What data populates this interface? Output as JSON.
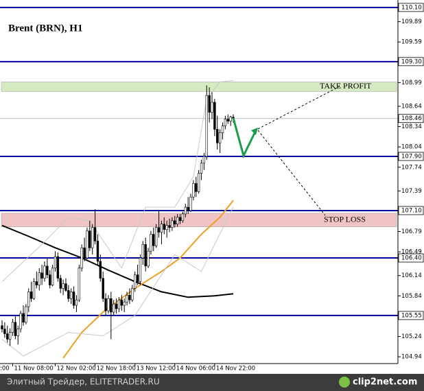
{
  "chart_data": {
    "type": "candlestick",
    "title": "Brent (BRN), H1",
    "categories": [
      null,
      null,
      null,
      null,
      "11 Nov 08:00",
      null,
      null,
      null,
      null,
      null,
      null,
      null,
      null,
      null,
      null,
      null,
      null,
      null,
      null,
      null,
      "12 Nov 02:00",
      null,
      null,
      null,
      null,
      null,
      null,
      null,
      null,
      null,
      null,
      null,
      null,
      null,
      null,
      "12 Nov 18:00",
      null,
      null,
      null,
      null,
      null,
      null,
      null,
      null,
      null,
      null,
      null,
      null,
      null,
      null,
      "13 Nov 12:00",
      null,
      null,
      null,
      null,
      null,
      null,
      null,
      null,
      null,
      null,
      null,
      null,
      null,
      null,
      "14 Nov 06:00",
      null,
      null,
      null,
      null,
      null,
      null,
      null,
      null,
      null,
      null,
      null,
      null,
      null,
      null,
      "14 Nov 22:00",
      null,
      null,
      null,
      null,
      null,
      null,
      null
    ],
    "x_axis_cut_label": ":00",
    "ohlc": [
      [
        105.4,
        105.48,
        105.3,
        105.35
      ],
      [
        105.35,
        105.45,
        105.22,
        105.28
      ],
      [
        105.28,
        105.4,
        105.15,
        105.2
      ],
      [
        105.2,
        105.36,
        105.1,
        105.3
      ],
      [
        105.3,
        105.5,
        105.25,
        105.45
      ],
      [
        105.45,
        105.55,
        105.2,
        105.25
      ],
      [
        105.25,
        105.4,
        105.12,
        105.35
      ],
      [
        105.35,
        105.62,
        105.3,
        105.58
      ],
      [
        105.58,
        105.7,
        105.4,
        105.45
      ],
      [
        105.45,
        105.72,
        105.42,
        105.68
      ],
      [
        105.68,
        105.95,
        105.6,
        105.9
      ],
      [
        105.9,
        106.05,
        105.75,
        105.8
      ],
      [
        105.8,
        106.1,
        105.78,
        106.05
      ],
      [
        106.05,
        106.2,
        105.95,
        106.0
      ],
      [
        106.0,
        106.25,
        105.92,
        106.18
      ],
      [
        106.18,
        106.3,
        106.0,
        106.1
      ],
      [
        106.1,
        106.35,
        106.05,
        106.28
      ],
      [
        106.28,
        106.4,
        106.1,
        106.15
      ],
      [
        106.15,
        106.22,
        105.95,
        106.0
      ],
      [
        106.0,
        106.3,
        105.98,
        106.25
      ],
      [
        106.25,
        106.5,
        106.2,
        106.42
      ],
      [
        106.42,
        106.48,
        106.05,
        106.1
      ],
      [
        106.1,
        106.15,
        105.88,
        105.95
      ],
      [
        105.95,
        106.08,
        105.85,
        106.02
      ],
      [
        106.02,
        106.1,
        105.9,
        105.92
      ],
      [
        105.92,
        106.0,
        105.75,
        105.8
      ],
      [
        105.8,
        105.95,
        105.72,
        105.9
      ],
      [
        105.9,
        105.98,
        105.65,
        105.7
      ],
      [
        105.7,
        105.85,
        105.6,
        105.78
      ],
      [
        105.78,
        106.3,
        105.75,
        106.25
      ],
      [
        106.25,
        106.6,
        106.2,
        106.55
      ],
      [
        106.55,
        106.7,
        106.35,
        106.4
      ],
      [
        106.4,
        106.85,
        106.38,
        106.8
      ],
      [
        106.8,
        106.95,
        106.5,
        106.55
      ],
      [
        106.55,
        106.9,
        106.45,
        106.85
      ],
      [
        106.85,
        107.12,
        106.6,
        106.65
      ],
      [
        106.65,
        106.75,
        106.3,
        106.35
      ],
      [
        106.35,
        106.45,
        106.05,
        106.1
      ],
      [
        106.1,
        106.2,
        105.75,
        105.8
      ],
      [
        105.8,
        105.88,
        105.55,
        105.62
      ],
      [
        105.62,
        105.85,
        105.58,
        105.8
      ],
      [
        105.8,
        105.9,
        105.2,
        105.6
      ],
      [
        105.6,
        105.78,
        105.55,
        105.72
      ],
      [
        105.72,
        105.8,
        105.58,
        105.65
      ],
      [
        105.65,
        105.82,
        105.6,
        105.78
      ],
      [
        105.78,
        105.85,
        105.62,
        105.7
      ],
      [
        105.7,
        105.8,
        105.6,
        105.75
      ],
      [
        105.75,
        105.9,
        105.7,
        105.85
      ],
      [
        105.85,
        105.95,
        105.72,
        105.78
      ],
      [
        105.78,
        106.0,
        105.75,
        105.95
      ],
      [
        105.95,
        106.2,
        105.9,
        106.15
      ],
      [
        106.15,
        106.3,
        106.0,
        106.05
      ],
      [
        106.05,
        106.45,
        106.0,
        106.4
      ],
      [
        106.4,
        106.65,
        106.3,
        106.6
      ],
      [
        106.6,
        106.7,
        106.2,
        106.28
      ],
      [
        106.28,
        106.55,
        106.25,
        106.5
      ],
      [
        106.5,
        106.8,
        106.45,
        106.75
      ],
      [
        106.75,
        106.85,
        106.5,
        106.58
      ],
      [
        106.58,
        106.9,
        106.55,
        106.85
      ],
      [
        106.85,
        107.1,
        106.7,
        106.78
      ],
      [
        106.78,
        106.95,
        106.6,
        106.9
      ],
      [
        106.9,
        107.0,
        106.75,
        106.82
      ],
      [
        106.82,
        106.95,
        106.7,
        106.88
      ],
      [
        106.88,
        106.98,
        106.78,
        106.85
      ],
      [
        106.85,
        107.0,
        106.8,
        106.95
      ],
      [
        106.95,
        107.02,
        106.85,
        106.9
      ],
      [
        106.9,
        107.05,
        106.86,
        107.0
      ],
      [
        107.0,
        107.05,
        106.9,
        106.95
      ],
      [
        106.95,
        107.08,
        106.92,
        107.05
      ],
      [
        107.05,
        107.2,
        107.0,
        107.15
      ],
      [
        107.15,
        107.3,
        107.05,
        107.1
      ],
      [
        107.1,
        107.35,
        107.08,
        107.3
      ],
      [
        107.3,
        107.55,
        107.25,
        107.5
      ],
      [
        107.5,
        107.6,
        107.3,
        107.38
      ],
      [
        107.38,
        107.7,
        107.35,
        107.65
      ],
      [
        107.65,
        107.85,
        107.55,
        107.8
      ],
      [
        107.8,
        107.95,
        107.7,
        107.9
      ],
      [
        107.9,
        108.95,
        107.85,
        108.8
      ],
      [
        108.8,
        108.92,
        108.4,
        108.55
      ],
      [
        108.55,
        108.85,
        108.45,
        108.7
      ],
      [
        108.7,
        108.75,
        108.2,
        108.3
      ],
      [
        108.3,
        108.5,
        108.0,
        108.1
      ],
      [
        108.1,
        108.3,
        107.95,
        108.25
      ],
      [
        108.25,
        108.4,
        108.15,
        108.35
      ],
      [
        108.35,
        108.5,
        108.3,
        108.45
      ],
      [
        108.45,
        108.52,
        108.38,
        108.42
      ],
      [
        108.42,
        108.5,
        108.35,
        108.48
      ],
      [
        108.48,
        108.52,
        108.4,
        108.46
      ]
    ],
    "lines": [
      {
        "color": "#000000",
        "width": 2,
        "x": [
          0,
          10,
          20,
          30,
          40,
          50,
          60,
          70,
          80,
          87
        ],
        "values": [
          106.88,
          106.72,
          106.55,
          106.4,
          106.22,
          106.05,
          105.9,
          105.82,
          105.84,
          105.87
        ]
      },
      {
        "color": "#f0a020",
        "width": 2,
        "x": [
          23,
          30,
          38,
          50,
          60,
          67,
          75,
          82,
          87
        ],
        "values": [
          104.92,
          105.3,
          105.6,
          105.95,
          106.2,
          106.4,
          106.75,
          107.0,
          107.25
        ]
      },
      {
        "color": "#c8c8c8",
        "width": 1,
        "x": [
          0,
          15,
          25,
          33,
          45,
          54,
          65,
          72,
          77,
          82,
          87
        ],
        "values": [
          106.05,
          106.6,
          107.0,
          106.95,
          106.25,
          107.15,
          107.15,
          107.6,
          108.75,
          109.0,
          109.02
        ]
      },
      {
        "color": "#c8c8c8",
        "width": 1,
        "x": [
          0,
          8,
          25,
          38,
          50,
          65,
          75,
          80,
          87
        ],
        "values": [
          105.2,
          104.95,
          105.3,
          105.25,
          105.55,
          106.45,
          106.2,
          106.6,
          107.15
        ]
      }
    ],
    "levels": [
      110.1,
      109.3,
      107.9,
      107.1,
      106.4,
      105.55
    ],
    "level_color": "#0000a0",
    "current_price": 108.46,
    "zones": [
      {
        "text": "TAKE PROFIT",
        "range": [
          108.86,
          109.0
        ],
        "color": "#d6eac2"
      },
      {
        "text": "STOP LOSS",
        "range": [
          106.86,
          107.06
        ],
        "color": "#f0c4c4"
      }
    ],
    "ylim": [
      104.84,
      110.21
    ],
    "yticks": [
      {
        "value": 110.1,
        "label": "110.10"
      },
      109.89,
      109.59,
      {
        "value": 109.3,
        "label": "109.30"
      },
      108.99,
      108.64,
      108.46,
      108.34,
      108.04,
      {
        "value": 107.9,
        "label": "107.90"
      },
      107.74,
      107.39,
      {
        "value": 107.1,
        "label": "107.10"
      },
      106.79,
      106.49,
      {
        "value": 106.4,
        "label": "106.40"
      },
      106.14,
      105.84,
      105.55,
      105.24,
      104.94
    ]
  },
  "footer": {
    "source": "Элитный Трейдер, ELITETRADER.RU",
    "logo": "clip2net.com"
  }
}
